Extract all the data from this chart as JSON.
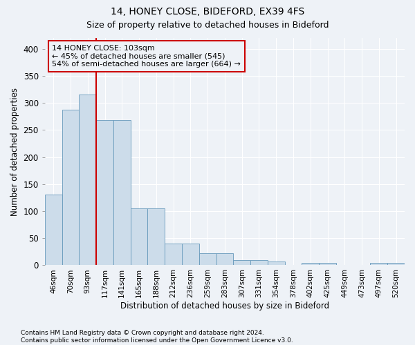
{
  "title_line1": "14, HONEY CLOSE, BIDEFORD, EX39 4FS",
  "title_line2": "Size of property relative to detached houses in Bideford",
  "xlabel": "Distribution of detached houses by size in Bideford",
  "ylabel": "Number of detached properties",
  "footnote": "Contains HM Land Registry data © Crown copyright and database right 2024.\nContains public sector information licensed under the Open Government Licence v3.0.",
  "bin_labels": [
    "46sqm",
    "70sqm",
    "93sqm",
    "117sqm",
    "141sqm",
    "165sqm",
    "188sqm",
    "212sqm",
    "236sqm",
    "259sqm",
    "283sqm",
    "307sqm",
    "331sqm",
    "354sqm",
    "378sqm",
    "402sqm",
    "425sqm",
    "449sqm",
    "473sqm",
    "497sqm",
    "520sqm"
  ],
  "bar_heights": [
    130,
    288,
    315,
    268,
    268,
    105,
    105,
    40,
    40,
    22,
    22,
    10,
    10,
    7,
    0,
    5,
    5,
    0,
    0,
    5,
    5
  ],
  "property_bin_index": 2,
  "annotation_text": "14 HONEY CLOSE: 103sqm\n← 45% of detached houses are smaller (545)\n54% of semi-detached houses are larger (664) →",
  "bar_color": "#ccdcea",
  "bar_edge_color": "#6699bb",
  "vline_color": "#cc0000",
  "annotation_box_color": "#cc0000",
  "background_color": "#eef2f7",
  "ylim": [
    0,
    420
  ],
  "yticks": [
    0,
    50,
    100,
    150,
    200,
    250,
    300,
    350,
    400
  ],
  "grid_color": "#ffffff"
}
